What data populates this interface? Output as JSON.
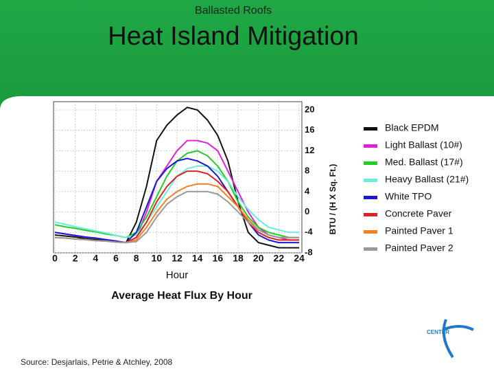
{
  "header": {
    "subtitle": "Ballasted Roofs",
    "title": "Heat Island Mitigation"
  },
  "chart_data": {
    "type": "line",
    "title": "Average Heat Flux By Hour",
    "x_label": "Hour",
    "y_label": "BTU / (H X Sq. Ft.)",
    "x": [
      0,
      1,
      2,
      3,
      4,
      5,
      6,
      7,
      8,
      9,
      10,
      11,
      12,
      13,
      14,
      15,
      16,
      17,
      18,
      19,
      20,
      21,
      22,
      23,
      24
    ],
    "xlim": [
      0,
      24
    ],
    "xticks": [
      0,
      2,
      4,
      6,
      8,
      10,
      12,
      14,
      16,
      18,
      20,
      22,
      24
    ],
    "ylim": [
      -8,
      20
    ],
    "yticks": [
      20,
      16,
      12,
      8,
      4,
      0,
      -4,
      -8
    ],
    "grid": true,
    "legend": "right",
    "series": [
      {
        "name": "Black EPDM",
        "color": "#111111",
        "values": [
          -4.5,
          -4.7,
          -4.9,
          -5.2,
          -5.4,
          -5.6,
          -5.8,
          -6,
          -2,
          5,
          14,
          17,
          19,
          20.5,
          20,
          18,
          15,
          10,
          2,
          -4,
          -6,
          -6.5,
          -7,
          -7,
          -7
        ]
      },
      {
        "name": "Light Ballast (10#)",
        "color": "#e020d8",
        "values": [
          -4,
          -4.3,
          -4.6,
          -4.9,
          -5.1,
          -5.4,
          -5.7,
          -6,
          -5,
          0,
          6,
          9,
          12,
          14,
          14,
          13.5,
          12,
          8,
          4,
          0,
          -3,
          -4.5,
          -5,
          -5.5,
          -5.5
        ]
      },
      {
        "name": "Med. Ballast (17#)",
        "color": "#22cc22",
        "values": [
          -2.5,
          -2.9,
          -3.2,
          -3.6,
          -3.9,
          -4.3,
          -4.6,
          -5,
          -4,
          -1,
          3,
          7,
          10,
          11.5,
          12,
          11,
          9,
          6,
          2,
          -1,
          -3,
          -4,
          -4.5,
          -5,
          -5
        ]
      },
      {
        "name": "Heavy Ballast (21#)",
        "color": "#66eedd",
        "values": [
          -2,
          -2.4,
          -2.9,
          -3.3,
          -3.7,
          -4.1,
          -4.6,
          -5,
          -4.5,
          -2,
          1,
          4,
          7,
          8.5,
          9,
          9,
          8,
          6,
          3,
          0.5,
          -1.5,
          -3,
          -3.5,
          -4,
          -4
        ]
      },
      {
        "name": "White TPO",
        "color": "#1a1acc",
        "values": [
          -4,
          -4.3,
          -4.6,
          -4.9,
          -5.1,
          -5.4,
          -5.7,
          -6,
          -4,
          1,
          6,
          8.5,
          10,
          10.5,
          10,
          9,
          7,
          4,
          1,
          -2,
          -4.5,
          -5.5,
          -6,
          -6,
          -6
        ]
      },
      {
        "name": "Concrete Paver",
        "color": "#dd2222",
        "values": [
          -5,
          -5.1,
          -5.3,
          -5.4,
          -5.6,
          -5.7,
          -5.9,
          -6,
          -5,
          -2,
          2,
          5,
          7,
          8,
          8,
          7.5,
          6,
          4,
          1,
          -2,
          -4,
          -5,
          -5.5,
          -5.5,
          -5.5
        ]
      },
      {
        "name": "Painted Paver 1",
        "color": "#f08020",
        "values": [
          -5,
          -5.1,
          -5.3,
          -5.4,
          -5.6,
          -5.7,
          -5.9,
          -6,
          -5.5,
          -3,
          0,
          2.5,
          4,
          5,
          5.5,
          5.5,
          5,
          3,
          1,
          -1.5,
          -3.5,
          -4.5,
          -5,
          -5,
          -5
        ]
      },
      {
        "name": "Painted Paver 2",
        "color": "#999999",
        "values": [
          -5,
          -5.1,
          -5.3,
          -5.4,
          -5.6,
          -5.7,
          -5.9,
          -6,
          -5.8,
          -4,
          -1,
          1.5,
          3,
          4,
          4,
          4,
          3.5,
          2,
          0,
          -2,
          -3.5,
          -4.5,
          -5,
          -5,
          -5
        ]
      }
    ]
  },
  "source": "Source: Desjarlais, Petrie & Atchley, 2008",
  "logo": "CENTER"
}
